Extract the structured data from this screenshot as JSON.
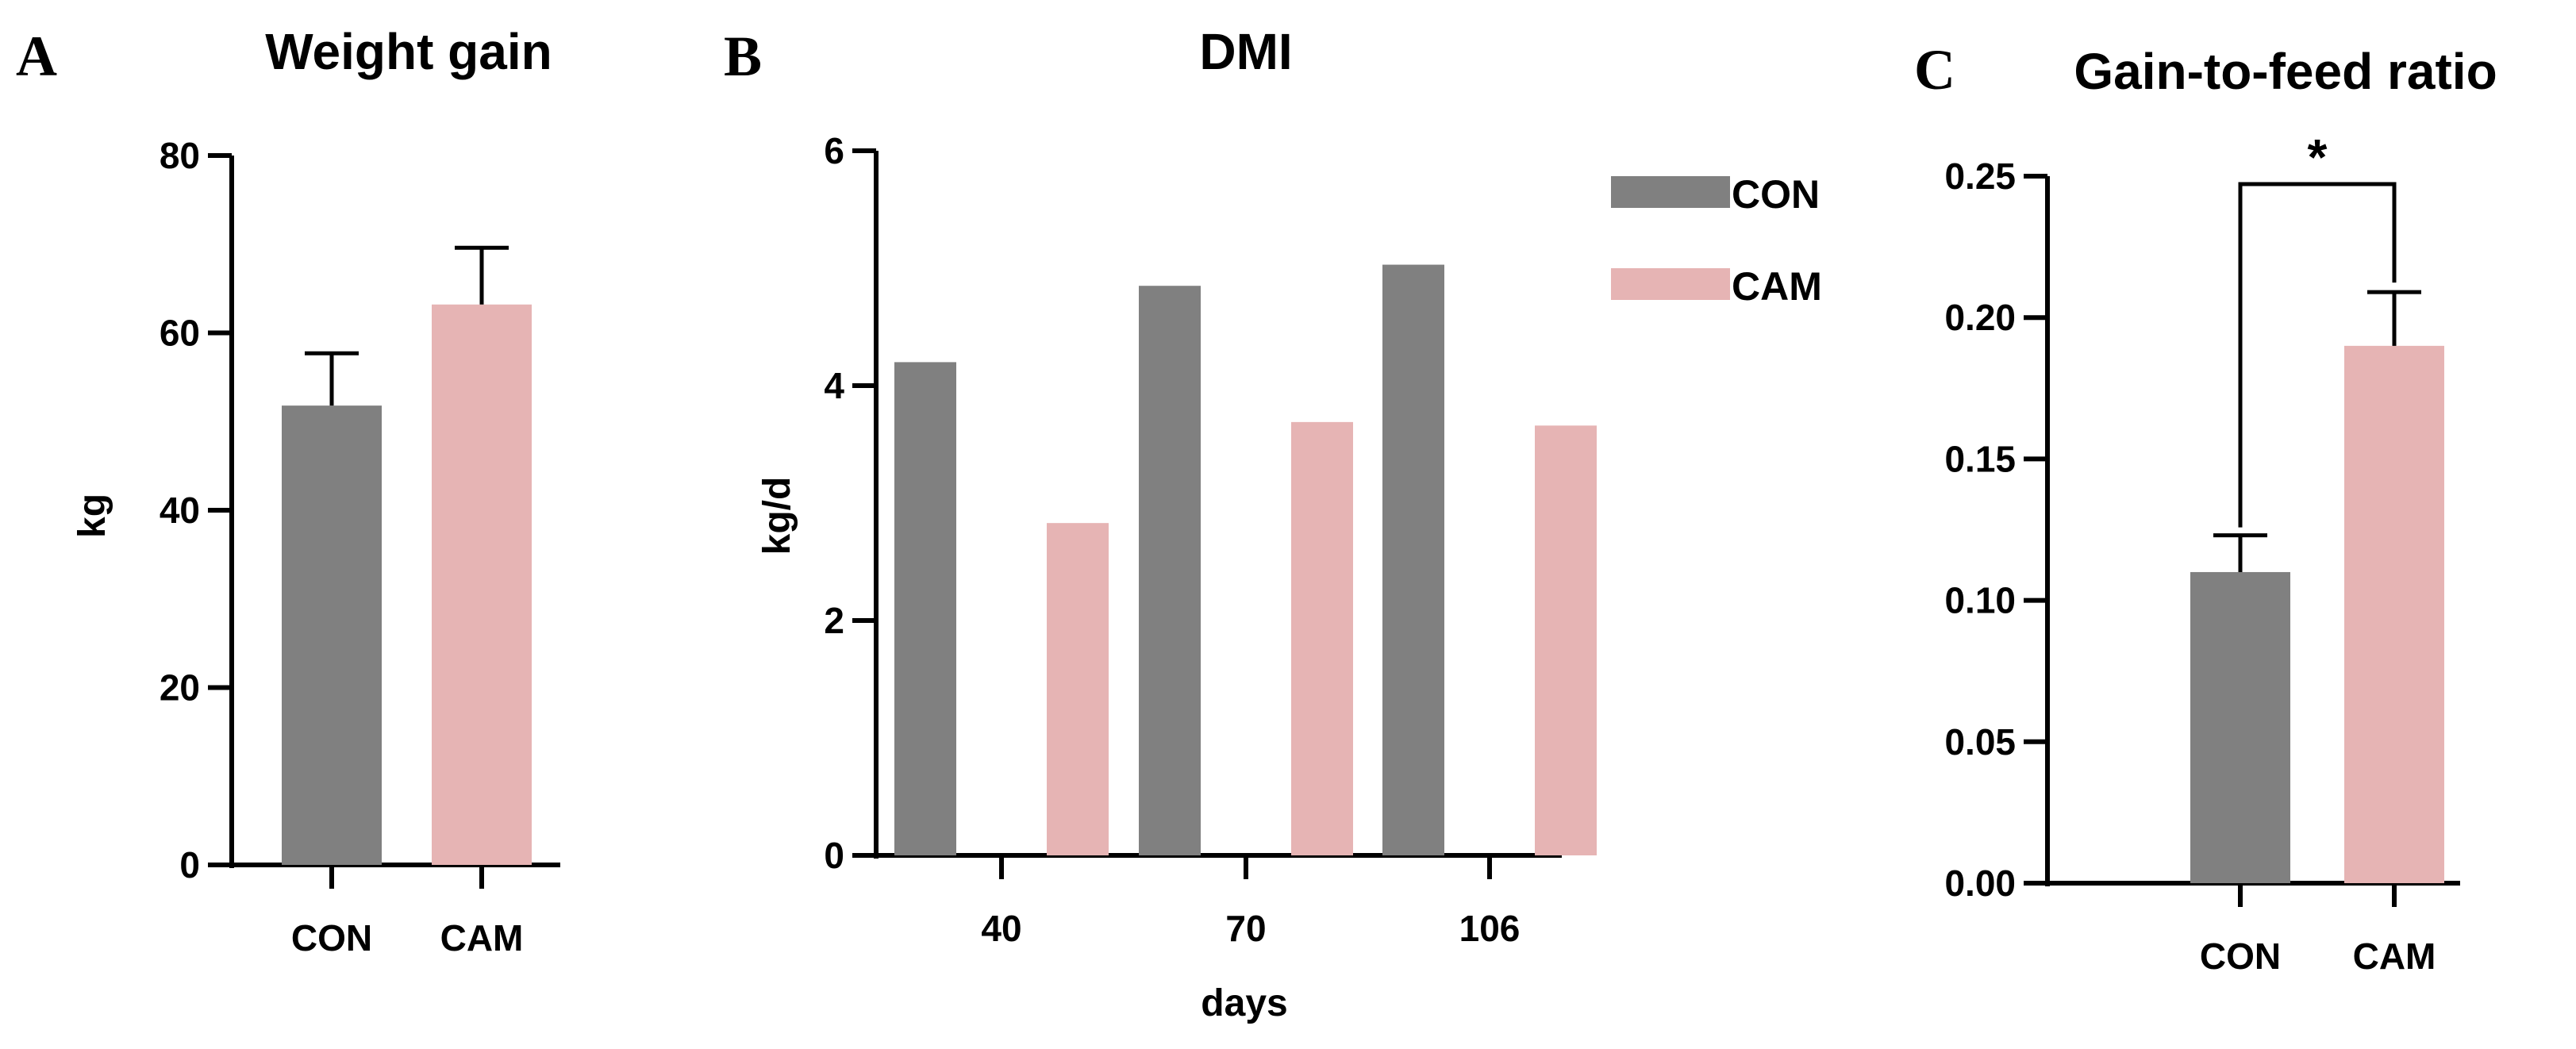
{
  "colors": {
    "CON": "#808080",
    "CAM": "#e6b4b4",
    "axis": "#000000"
  },
  "chart_data": [
    {
      "panel": "A",
      "type": "bar",
      "title": "Weight gain",
      "xlabel": "",
      "ylabel": "kg",
      "categories": [
        "CON",
        "CAM"
      ],
      "values": [
        51.8,
        63.2
      ],
      "errors": [
        5.9,
        6.4
      ],
      "ylim": [
        0,
        80
      ],
      "yticks": [
        "0",
        "20",
        "40",
        "60",
        "80"
      ],
      "ytick_values": [
        0,
        20,
        40,
        60,
        80
      ]
    },
    {
      "panel": "B",
      "type": "bar",
      "title": "DMI",
      "xlabel": "days",
      "ylabel": "kg/d",
      "categories": [
        "40",
        "70",
        "106"
      ],
      "series": [
        {
          "name": "CON",
          "values": [
            4.2,
            4.85,
            5.03
          ]
        },
        {
          "name": "CAM",
          "values": [
            2.83,
            3.69,
            3.66
          ]
        }
      ],
      "ylim": [
        0,
        6
      ],
      "yticks": [
        "0",
        "2",
        "4",
        "6"
      ],
      "ytick_values": [
        0,
        2,
        4,
        6
      ],
      "legend": [
        "CON",
        "CAM"
      ],
      "legend_position": "top-right"
    },
    {
      "panel": "C",
      "type": "bar",
      "title": "Gain-to-feed ratio",
      "xlabel": "",
      "ylabel": "",
      "categories": [
        "CON",
        "CAM"
      ],
      "values": [
        0.11,
        0.19
      ],
      "errors": [
        0.013,
        0.019
      ],
      "ylim": [
        0,
        0.25
      ],
      "yticks": [
        "0.00",
        "0.05",
        "0.10",
        "0.15",
        "0.20",
        "0.25"
      ],
      "ytick_values": [
        0,
        0.05,
        0.1,
        0.15,
        0.2,
        0.25
      ],
      "significance": "*"
    }
  ]
}
